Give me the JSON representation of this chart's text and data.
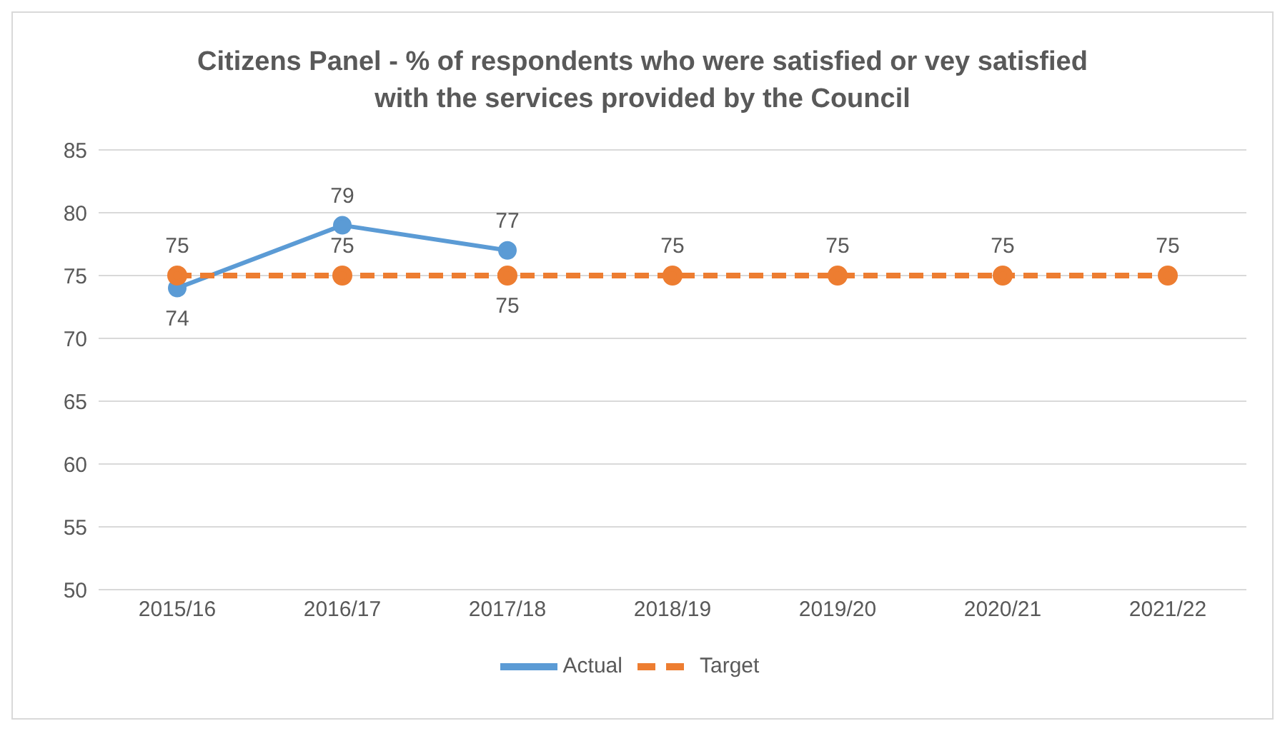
{
  "chart_data": {
    "type": "line",
    "title": "Citizens Panel - % of respondents who were satisfied or vey satisfied with the services provided by the Council",
    "categories": [
      "2015/16",
      "2016/17",
      "2017/18",
      "2018/19",
      "2019/20",
      "2020/21",
      "2021/22"
    ],
    "series": [
      {
        "name": "Actual",
        "color": "#5b9bd5",
        "line_style": "solid",
        "values": [
          74,
          79,
          77,
          null,
          null,
          null,
          null
        ]
      },
      {
        "name": "Target",
        "color": "#ed7d31",
        "line_style": "dashed",
        "values": [
          75,
          75,
          75,
          75,
          75,
          75,
          75
        ]
      }
    ],
    "ylim": [
      50,
      85
    ],
    "yticks": [
      50,
      55,
      60,
      65,
      70,
      75,
      80,
      85
    ],
    "grid": "y",
    "legend": "bottom",
    "marker": "circle",
    "data_labels": true
  }
}
